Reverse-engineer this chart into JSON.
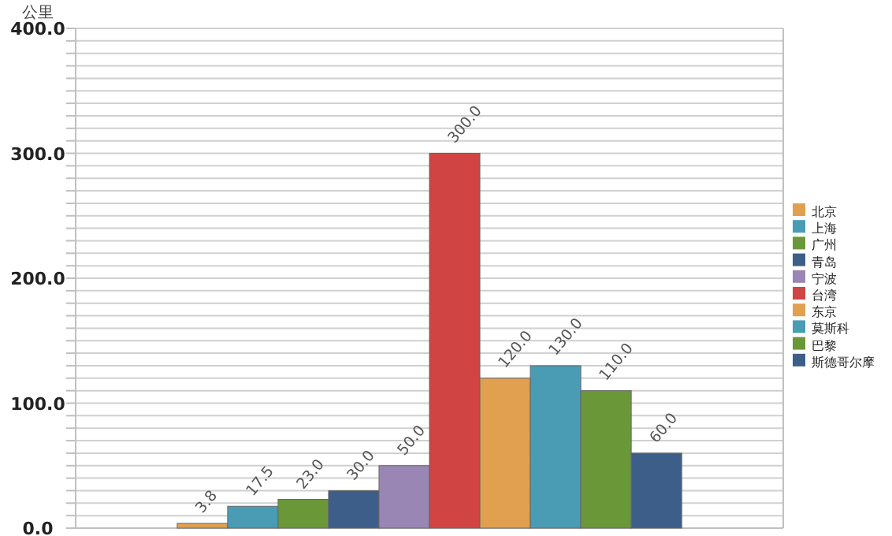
{
  "chart_data": {
    "type": "bar",
    "ylabel": "公里",
    "categories": [
      null
    ],
    "series": [
      {
        "name": "北京",
        "color": "#e0a050",
        "values": [
          3.8
        ],
        "value_labels": [
          "3.8"
        ]
      },
      {
        "name": "上海",
        "color": "#4a9cb4",
        "values": [
          17.5
        ],
        "value_labels": [
          "17.5"
        ]
      },
      {
        "name": "广州",
        "color": "#6a9838",
        "values": [
          23.0
        ],
        "value_labels": [
          "23.0"
        ]
      },
      {
        "name": "青岛",
        "color": "#3e5e8a",
        "values": [
          30.0
        ],
        "value_labels": [
          "30.0"
        ]
      },
      {
        "name": "宁波",
        "color": "#9a86b4",
        "values": [
          50.0
        ],
        "value_labels": [
          "50.0"
        ]
      },
      {
        "name": "台湾",
        "color": "#d04444",
        "values": [
          300.0
        ],
        "value_labels": [
          "300.0"
        ]
      },
      {
        "name": "东京",
        "color": "#e0a050",
        "values": [
          120.0
        ],
        "value_labels": [
          "120.0"
        ]
      },
      {
        "name": "莫斯科",
        "color": "#4a9cb4",
        "values": [
          130.0
        ],
        "value_labels": [
          "130.0"
        ]
      },
      {
        "name": "巴黎",
        "color": "#6a9838",
        "values": [
          110.0
        ],
        "value_labels": [
          "110.0"
        ]
      },
      {
        "name": "斯德哥尔摩",
        "color": "#3e5e8a",
        "values": [
          60.0
        ],
        "value_labels": [
          "60.0"
        ]
      }
    ],
    "ylim": [
      0,
      400
    ],
    "yticks": [
      {
        "value": 0,
        "label": "0.0"
      },
      {
        "value": 10,
        "label": null
      },
      {
        "value": 20,
        "label": null
      },
      {
        "value": 30,
        "label": null
      },
      {
        "value": 40,
        "label": null
      },
      {
        "value": 50,
        "label": null
      },
      {
        "value": 60,
        "label": null
      },
      {
        "value": 70,
        "label": null
      },
      {
        "value": 80,
        "label": null
      },
      {
        "value": 90,
        "label": null
      },
      {
        "value": 100,
        "label": "100.0"
      },
      {
        "value": 110,
        "label": null
      },
      {
        "value": 120,
        "label": null
      },
      {
        "value": 130,
        "label": null
      },
      {
        "value": 140,
        "label": null
      },
      {
        "value": 150,
        "label": null
      },
      {
        "value": 160,
        "label": null
      },
      {
        "value": 170,
        "label": null
      },
      {
        "value": 180,
        "label": null
      },
      {
        "value": 190,
        "label": null
      },
      {
        "value": 200,
        "label": "200.0"
      },
      {
        "value": 210,
        "label": null
      },
      {
        "value": 220,
        "label": null
      },
      {
        "value": 230,
        "label": null
      },
      {
        "value": 240,
        "label": null
      },
      {
        "value": 250,
        "label": null
      },
      {
        "value": 260,
        "label": null
      },
      {
        "value": 270,
        "label": null
      },
      {
        "value": 280,
        "label": null
      },
      {
        "value": 290,
        "label": null
      },
      {
        "value": 300,
        "label": "300.0"
      },
      {
        "value": 310,
        "label": null
      },
      {
        "value": 320,
        "label": null
      },
      {
        "value": 330,
        "label": null
      },
      {
        "value": 340,
        "label": null
      },
      {
        "value": 350,
        "label": null
      },
      {
        "value": 360,
        "label": null
      },
      {
        "value": 370,
        "label": null
      },
      {
        "value": 380,
        "label": null
      },
      {
        "value": 390,
        "label": null
      },
      {
        "value": 400,
        "label": "400.0"
      }
    ],
    "grid": "y",
    "legend": "right"
  }
}
